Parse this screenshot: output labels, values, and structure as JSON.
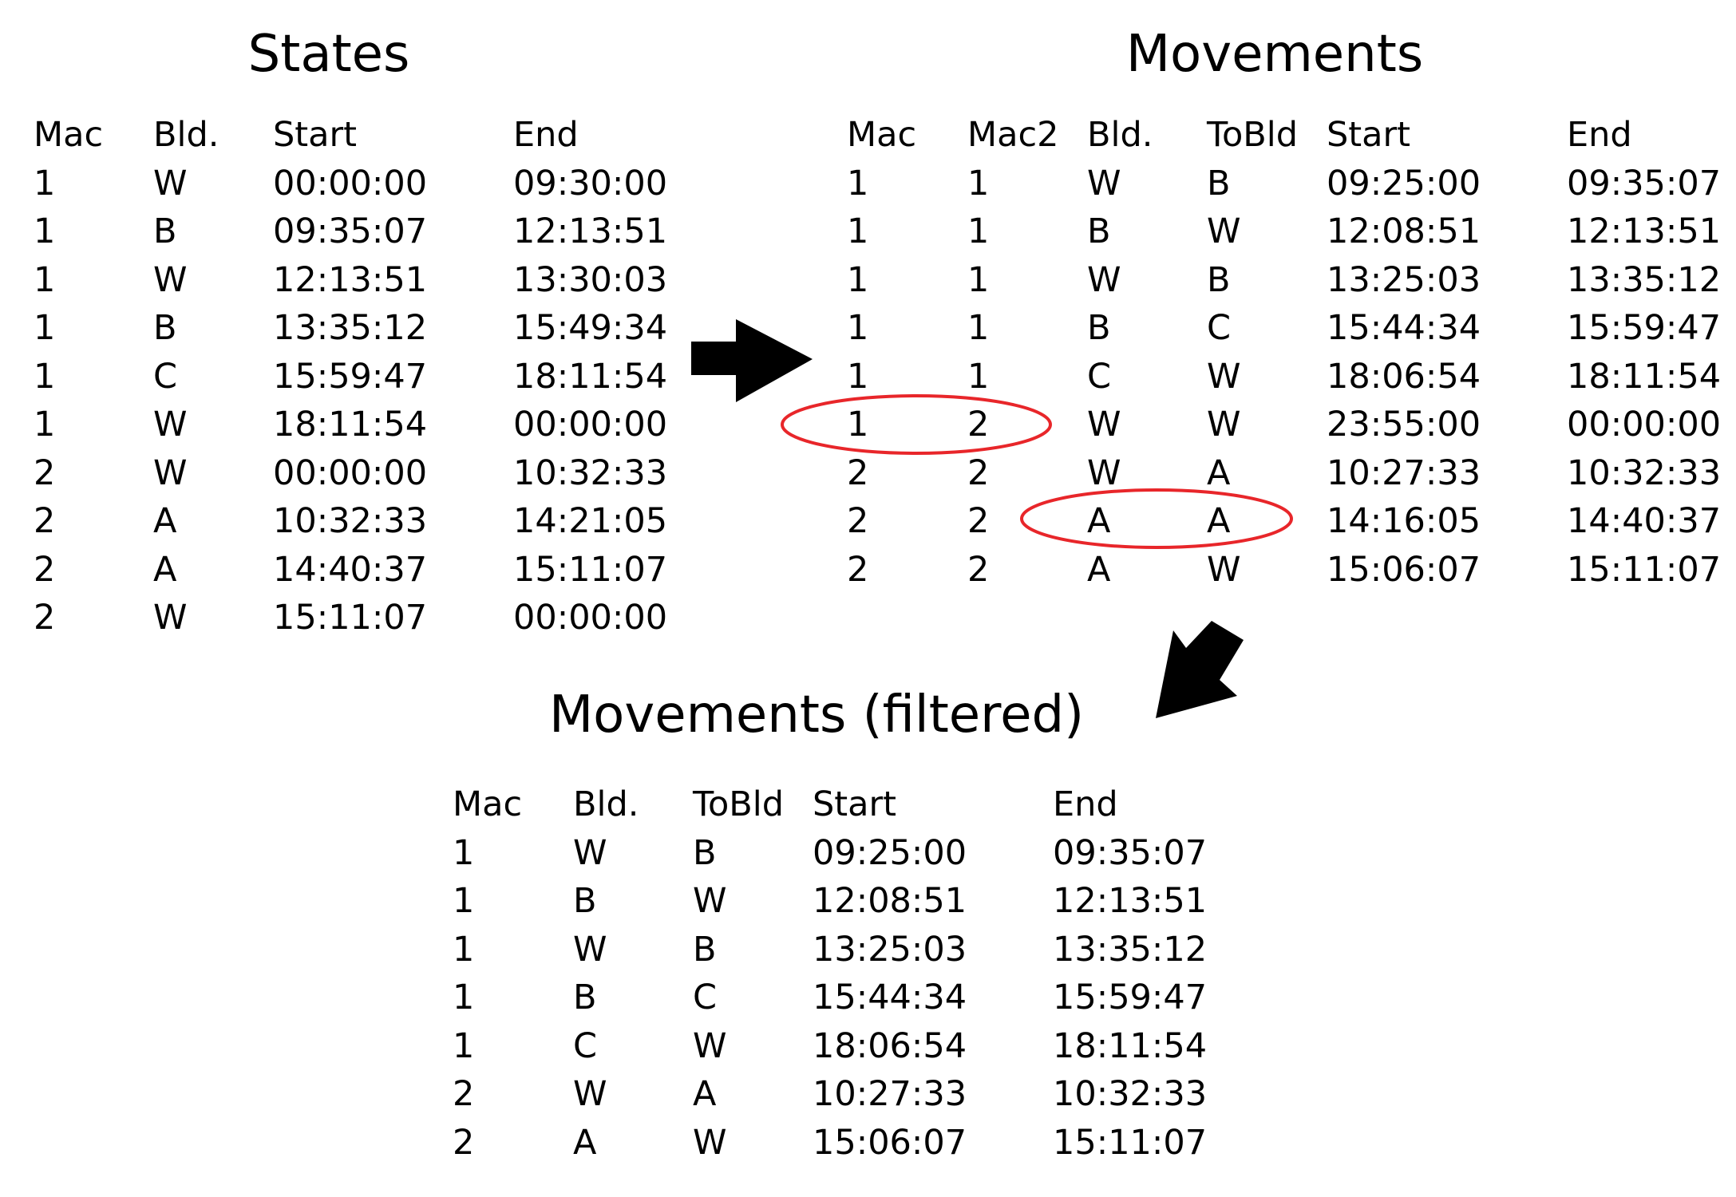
{
  "colors": {
    "text": "#000000",
    "arrow": "#000000",
    "highlight_ellipse": "#e8262a",
    "background": "#ffffff"
  },
  "tables": {
    "states": {
      "title": "States",
      "headers": [
        "Mac",
        "Bld.",
        "Start",
        "End"
      ],
      "rows": [
        [
          "1",
          "W",
          "00:00:00",
          "09:30:00"
        ],
        [
          "1",
          "B",
          "09:35:07",
          "12:13:51"
        ],
        [
          "1",
          "W",
          "12:13:51",
          "13:30:03"
        ],
        [
          "1",
          "B",
          "13:35:12",
          "15:49:34"
        ],
        [
          "1",
          "C",
          "15:59:47",
          "18:11:54"
        ],
        [
          "1",
          "W",
          "18:11:54",
          "00:00:00"
        ],
        [
          "2",
          "W",
          "00:00:00",
          "10:32:33"
        ],
        [
          "2",
          "A",
          "10:32:33",
          "14:21:05"
        ],
        [
          "2",
          "A",
          "14:40:37",
          "15:11:07"
        ],
        [
          "2",
          "W",
          "15:11:07",
          "00:00:00"
        ]
      ]
    },
    "movements": {
      "title": "Movements",
      "headers": [
        "Mac",
        "Mac2",
        "Bld.",
        "ToBld",
        "Start",
        "End"
      ],
      "rows": [
        [
          "1",
          "1",
          "W",
          "B",
          "09:25:00",
          "09:35:07"
        ],
        [
          "1",
          "1",
          "B",
          "W",
          "12:08:51",
          "12:13:51"
        ],
        [
          "1",
          "1",
          "W",
          "B",
          "13:25:03",
          "13:35:12"
        ],
        [
          "1",
          "1",
          "B",
          "C",
          "15:44:34",
          "15:59:47"
        ],
        [
          "1",
          "1",
          "C",
          "W",
          "18:06:54",
          "18:11:54"
        ],
        [
          "1",
          "2",
          "W",
          "W",
          "23:55:00",
          "00:00:00"
        ],
        [
          "2",
          "2",
          "W",
          "A",
          "10:27:33",
          "10:32:33"
        ],
        [
          "2",
          "2",
          "A",
          "A",
          "14:16:05",
          "14:40:37"
        ],
        [
          "2",
          "2",
          "A",
          "W",
          "15:06:07",
          "15:11:07"
        ]
      ]
    },
    "filtered": {
      "title": "Movements (filtered)",
      "headers": [
        "Mac",
        "Bld.",
        "ToBld",
        "Start",
        "End"
      ],
      "rows": [
        [
          "1",
          "W",
          "B",
          "09:25:00",
          "09:35:07"
        ],
        [
          "1",
          "B",
          "W",
          "12:08:51",
          "12:13:51"
        ],
        [
          "1",
          "W",
          "B",
          "13:25:03",
          "13:35:12"
        ],
        [
          "1",
          "B",
          "C",
          "15:44:34",
          "15:59:47"
        ],
        [
          "1",
          "C",
          "W",
          "18:06:54",
          "18:11:54"
        ],
        [
          "2",
          "W",
          "A",
          "10:27:33",
          "10:32:33"
        ],
        [
          "2",
          "A",
          "W",
          "15:06:07",
          "15:11:07"
        ]
      ]
    }
  }
}
